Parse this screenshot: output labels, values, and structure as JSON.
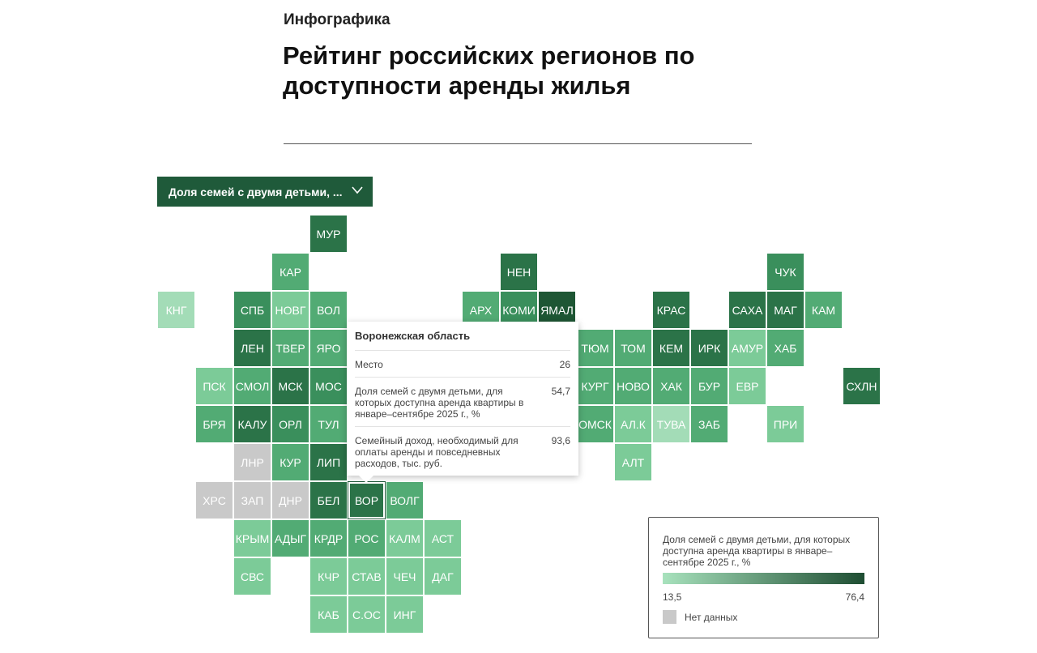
{
  "header": {
    "kicker": "Инфографика",
    "title": "Рейтинг российских регионов по доступности аренды жилья"
  },
  "dropdown": {
    "label": "Доля семей с двумя детьми, ..."
  },
  "grid": [
    [
      null,
      null,
      null,
      null,
      {
        "label": "МУР",
        "color": "#2b7348"
      },
      null,
      null,
      null,
      null,
      null,
      null,
      null,
      null,
      null,
      null,
      null,
      null,
      null,
      null
    ],
    [
      null,
      null,
      null,
      {
        "label": "КАР",
        "color": "#52ab74"
      },
      null,
      null,
      null,
      null,
      null,
      {
        "label": "НЕН",
        "color": "#2b7348"
      },
      null,
      null,
      null,
      null,
      null,
      null,
      {
        "label": "ЧУК",
        "color": "#3a8f5c"
      },
      null,
      null
    ],
    [
      {
        "label": "КНГ",
        "color": "#a3dcb7"
      },
      null,
      {
        "label": "СПБ",
        "color": "#3a8f5c"
      },
      {
        "label": "НОВГ",
        "color": "#7ccb98"
      },
      {
        "label": "ВОЛ",
        "color": "#52ab74"
      },
      null,
      null,
      null,
      {
        "label": "АРХ",
        "color": "#52ab74"
      },
      {
        "label": "КОМИ",
        "color": "#3a8f5c"
      },
      {
        "label": "ЯМАЛ",
        "color": "#1e5634"
      },
      null,
      null,
      {
        "label": "КРАС",
        "color": "#2b7348"
      },
      null,
      {
        "label": "САХА",
        "color": "#2b7348"
      },
      {
        "label": "МАГ",
        "color": "#2b7348"
      },
      {
        "label": "КАМ",
        "color": "#52ab74"
      },
      null
    ],
    [
      null,
      null,
      {
        "label": "ЛЕН",
        "color": "#2b7348"
      },
      {
        "label": "ТВЕР",
        "color": "#52ab74"
      },
      {
        "label": "ЯРО",
        "color": "#52ab74"
      },
      null,
      null,
      null,
      null,
      null,
      null,
      {
        "label": "ТЮМ",
        "color": "#52ab74"
      },
      {
        "label": "ТОМ",
        "color": "#52ab74"
      },
      {
        "label": "КЕМ",
        "color": "#2b7348"
      },
      {
        "label": "ИРК",
        "color": "#2b7348"
      },
      {
        "label": "АМУР",
        "color": "#7ccb98"
      },
      {
        "label": "ХАБ",
        "color": "#52ab74"
      },
      null,
      null
    ],
    [
      null,
      {
        "label": "ПСК",
        "color": "#7ccb98"
      },
      {
        "label": "СМОЛ",
        "color": "#52ab74"
      },
      {
        "label": "МСК",
        "color": "#2b7348"
      },
      {
        "label": "МОС",
        "color": "#3a8f5c"
      },
      null,
      null,
      null,
      null,
      null,
      null,
      {
        "label": "КУРГ",
        "color": "#52ab74"
      },
      {
        "label": "НОВО",
        "color": "#52ab74"
      },
      {
        "label": "ХАК",
        "color": "#52ab74"
      },
      {
        "label": "БУР",
        "color": "#52ab74"
      },
      {
        "label": "ЕВР",
        "color": "#7ccb98"
      },
      null,
      null,
      {
        "label": "СХЛН",
        "color": "#2b7348"
      }
    ],
    [
      null,
      {
        "label": "БРЯ",
        "color": "#52ab74"
      },
      {
        "label": "КАЛУ",
        "color": "#2b7348"
      },
      {
        "label": "ОРЛ",
        "color": "#3a8f5c"
      },
      {
        "label": "ТУЛ",
        "color": "#52ab74"
      },
      null,
      null,
      null,
      null,
      null,
      null,
      {
        "label": "ОМСК",
        "color": "#52ab74"
      },
      {
        "label": "АЛ.К",
        "color": "#7ccb98"
      },
      {
        "label": "ТУВА",
        "color": "#a3dcb7"
      },
      {
        "label": "ЗАБ",
        "color": "#52ab74"
      },
      null,
      {
        "label": "ПРИ",
        "color": "#7ccb98"
      },
      null,
      null
    ],
    [
      null,
      null,
      {
        "label": "ЛНР",
        "color": "#c9c9c9"
      },
      {
        "label": "КУР",
        "color": "#52ab74"
      },
      {
        "label": "ЛИП",
        "color": "#2b7348"
      },
      null,
      null,
      null,
      null,
      null,
      null,
      null,
      {
        "label": "АЛТ",
        "color": "#7ccb98"
      },
      null,
      null,
      null,
      null,
      null,
      null
    ],
    [
      null,
      {
        "label": "ХРС",
        "color": "#c9c9c9"
      },
      {
        "label": "ЗАП",
        "color": "#c9c9c9"
      },
      {
        "label": "ДНР",
        "color": "#c9c9c9"
      },
      {
        "label": "БЕЛ",
        "color": "#2b7348"
      },
      {
        "label": "ВОР",
        "color": "#2b7348"
      },
      {
        "label": "ВОЛГ",
        "color": "#52ab74"
      },
      null,
      null,
      null,
      null,
      null,
      null,
      null,
      null,
      null,
      null,
      null,
      null
    ],
    [
      null,
      null,
      {
        "label": "КРЫМ",
        "color": "#7ccb98"
      },
      {
        "label": "АДЫГ",
        "color": "#52ab74"
      },
      {
        "label": "КРДР",
        "color": "#52ab74"
      },
      {
        "label": "РОС",
        "color": "#52ab74"
      },
      {
        "label": "КАЛМ",
        "color": "#7ccb98"
      },
      {
        "label": "АСТ",
        "color": "#7ccb98"
      },
      null,
      null,
      null,
      null,
      null,
      null,
      null,
      null,
      null,
      null,
      null
    ],
    [
      null,
      null,
      {
        "label": "СВС",
        "color": "#7ccb98"
      },
      null,
      {
        "label": "КЧР",
        "color": "#7ccb98"
      },
      {
        "label": "СТАВ",
        "color": "#7ccb98"
      },
      {
        "label": "ЧЕЧ",
        "color": "#7ccb98"
      },
      {
        "label": "ДАГ",
        "color": "#7ccb98"
      },
      null,
      null,
      null,
      null,
      null,
      null,
      null,
      null,
      null,
      null,
      null
    ],
    [
      null,
      null,
      null,
      null,
      {
        "label": "КАБ",
        "color": "#7ccb98"
      },
      {
        "label": "С.ОС",
        "color": "#7ccb98"
      },
      {
        "label": "ИНГ",
        "color": "#7ccb98"
      },
      null,
      null,
      null,
      null,
      null,
      null,
      null,
      null,
      null,
      null,
      null,
      null
    ]
  ],
  "selected": "ВОР",
  "tooltip": {
    "title": "Воронежская область",
    "rows": [
      {
        "label": "Место",
        "value": "26"
      },
      {
        "label": "Доля семей с двумя детьми, для которых доступна аренда квартиры в январе–сентябре 2025 г., %",
        "value": "54,7"
      },
      {
        "label": "Семейный доход, необходимый для оплаты аренды и повседневных расходов, тыс. руб.",
        "value": "93,6"
      }
    ]
  },
  "legend": {
    "title": "Доля семей с двумя детьми, для которых доступна аренда квартиры в январе–сентябре 2025 г., %",
    "min": "13,5",
    "max": "76,4",
    "no_data": "Нет данных",
    "colors": [
      "#a8e2bd",
      "#1e4d32"
    ]
  }
}
